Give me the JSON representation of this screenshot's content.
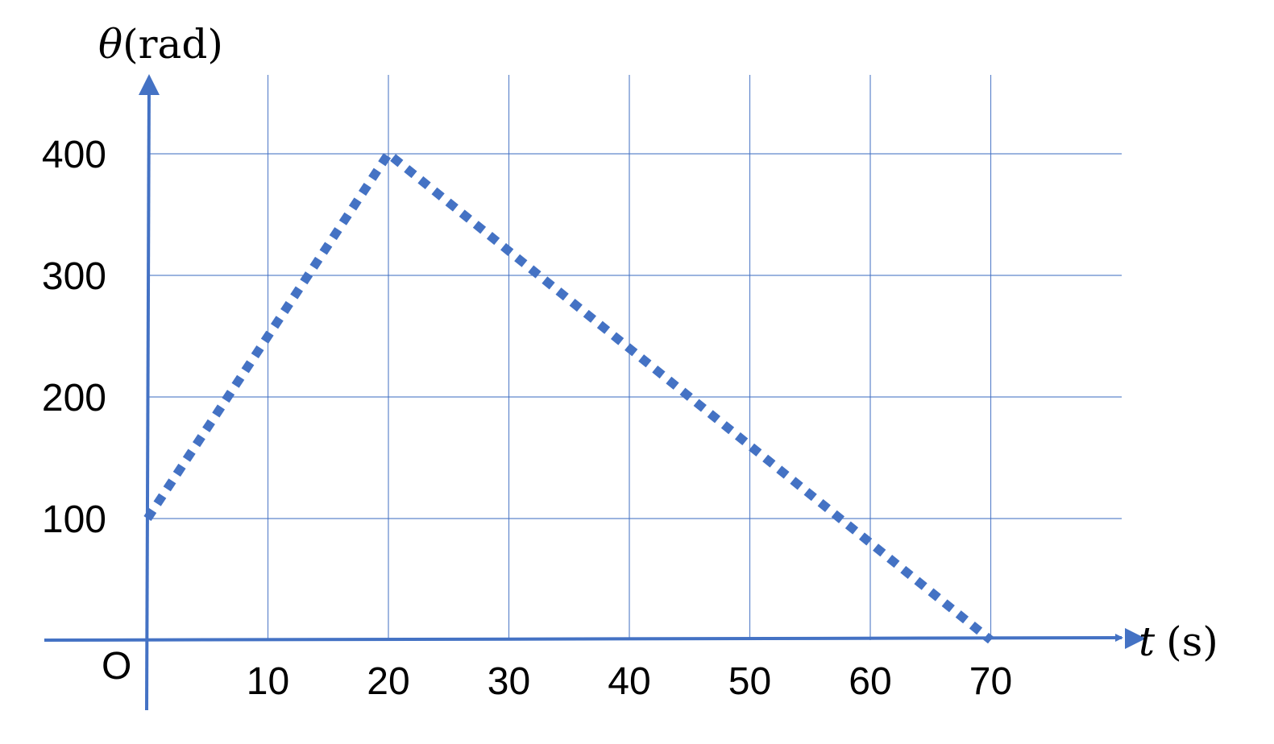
{
  "chart_data": {
    "type": "line",
    "x_label_symbol": "t",
    "x_label_unit": "(s)",
    "y_label_symbol": "θ",
    "y_label_unit": "(rad)",
    "origin_label": "O",
    "x_ticks": [
      10,
      20,
      30,
      40,
      50,
      60,
      70
    ],
    "y_ticks": [
      100,
      200,
      300,
      400
    ],
    "xlim": [
      0,
      80
    ],
    "ylim": [
      0,
      400
    ],
    "grid": true,
    "line_style": "dotted",
    "series": [
      {
        "x": [
          0,
          20,
          70
        ],
        "y": [
          100,
          400,
          0
        ]
      }
    ]
  },
  "colors": {
    "axis": "#4472C4",
    "grid": "#4472C4",
    "series": "#4472C4",
    "text": "#000000"
  }
}
